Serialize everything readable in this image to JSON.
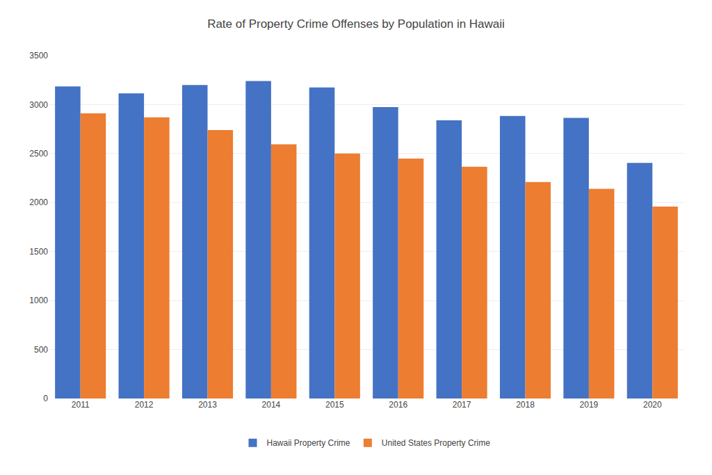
{
  "chart_data": {
    "type": "bar",
    "title": "Rate of Property Crime Offenses by Population in Hawaii",
    "categories": [
      "2011",
      "2012",
      "2013",
      "2014",
      "2015",
      "2016",
      "2017",
      "2018",
      "2019",
      "2020"
    ],
    "series": [
      {
        "name": "Hawaii Property Crime",
        "color": "#4472C4",
        "values": [
          3185,
          3115,
          3200,
          3240,
          3175,
          2975,
          2840,
          2885,
          2865,
          2405
        ]
      },
      {
        "name": "United States Property Crime",
        "color": "#ED7D31",
        "values": [
          2910,
          2870,
          2740,
          2595,
          2500,
          2450,
          2365,
          2210,
          2140,
          1960
        ]
      }
    ],
    "ylim": [
      0,
      3500
    ],
    "yticks": [
      0,
      500,
      1000,
      1500,
      2000,
      2500,
      3000,
      3500
    ],
    "grid": true,
    "legend": "bottom"
  }
}
